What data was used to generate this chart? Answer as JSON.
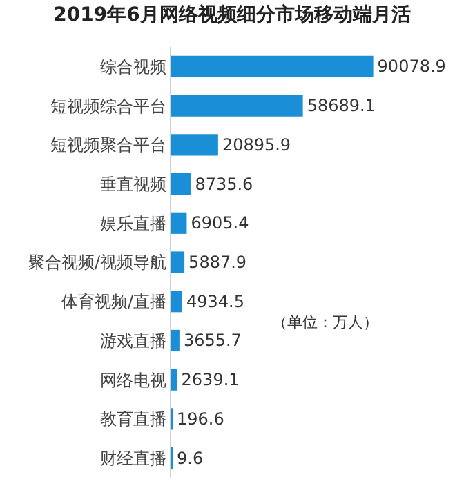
{
  "chart_data": {
    "type": "bar",
    "orientation": "horizontal",
    "title": "2019年6月网络视频细分市场移动端月活",
    "categories": [
      "综合视频",
      "短视频综合平台",
      "短视频聚合平台",
      "垂直视频",
      "娱乐直播",
      "聚合视频/视频导航",
      "体育视频/直播",
      "游戏直播",
      "网络电视",
      "教育直播",
      "财经直播"
    ],
    "values": [
      90078.9,
      58689.1,
      20895.9,
      8735.6,
      6905.4,
      5887.9,
      4934.5,
      3655.7,
      2639.1,
      196.6,
      9.6
    ],
    "color": "#1a8fd8",
    "data_labels": true,
    "grid": false,
    "annotations": [
      "（单位：万人）"
    ]
  }
}
